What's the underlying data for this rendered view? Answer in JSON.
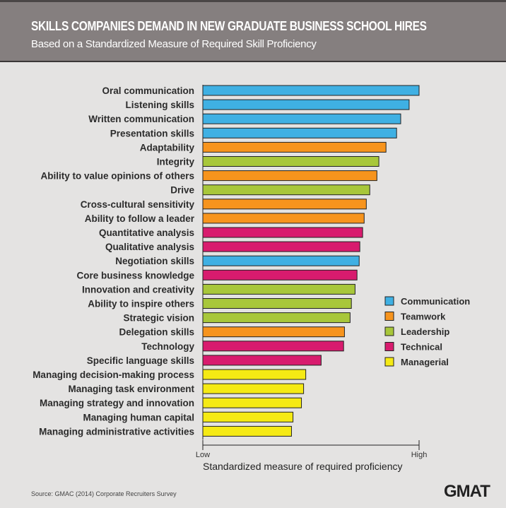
{
  "chart_data": {
    "type": "bar",
    "orientation": "horizontal",
    "title": "SKILLS COMPANIES DEMAND IN NEW GRADUATE BUSINESS SCHOOL HIRES",
    "subtitle": "Based on a Standardized Measure of Required Skill Proficiency",
    "xlabel": "Standardized measure of required proficiency",
    "x_tick_labels": [
      "Low",
      "High"
    ],
    "xlim": [
      0,
      1
    ],
    "grid": false,
    "legend_placement": "right",
    "legend": [
      {
        "name": "Communication",
        "color": "#3fb0e3"
      },
      {
        "name": "Teamwork",
        "color": "#f7941d"
      },
      {
        "name": "Leadership",
        "color": "#a8c73a"
      },
      {
        "name": "Technical",
        "color": "#d81b6e"
      },
      {
        "name": "Managerial",
        "color": "#f5ea14"
      }
    ],
    "bars": [
      {
        "label": "Oral communication",
        "value": 1.0,
        "group": "Communication"
      },
      {
        "label": "Listening skills",
        "value": 0.954,
        "group": "Communication"
      },
      {
        "label": "Written communication",
        "value": 0.915,
        "group": "Communication"
      },
      {
        "label": "Presentation skills",
        "value": 0.896,
        "group": "Communication"
      },
      {
        "label": "Adaptability",
        "value": 0.847,
        "group": "Teamwork"
      },
      {
        "label": "Integrity",
        "value": 0.814,
        "group": "Leadership"
      },
      {
        "label": "Ability to value opinions of others",
        "value": 0.805,
        "group": "Teamwork"
      },
      {
        "label": "Drive",
        "value": 0.772,
        "group": "Leadership"
      },
      {
        "label": "Cross-cultural sensitivity",
        "value": 0.756,
        "group": "Teamwork"
      },
      {
        "label": "Ability to follow a leader",
        "value": 0.746,
        "group": "Teamwork"
      },
      {
        "label": "Quantitative analysis",
        "value": 0.739,
        "group": "Technical"
      },
      {
        "label": "Qualitative analysis",
        "value": 0.726,
        "group": "Technical"
      },
      {
        "label": "Negotiation skills",
        "value": 0.723,
        "group": "Communication"
      },
      {
        "label": "Core business knowledge",
        "value": 0.713,
        "group": "Technical"
      },
      {
        "label": "Innovation and creativity",
        "value": 0.704,
        "group": "Leadership"
      },
      {
        "label": "Ability to inspire others",
        "value": 0.687,
        "group": "Leadership"
      },
      {
        "label": "Strategic vision",
        "value": 0.681,
        "group": "Leadership"
      },
      {
        "label": "Delegation skills",
        "value": 0.655,
        "group": "Teamwork"
      },
      {
        "label": "Technology",
        "value": 0.651,
        "group": "Technical"
      },
      {
        "label": "Specific language skills",
        "value": 0.547,
        "group": "Technical"
      },
      {
        "label": "Managing decision-making process",
        "value": 0.476,
        "group": "Managerial"
      },
      {
        "label": "Managing task environment",
        "value": 0.466,
        "group": "Managerial"
      },
      {
        "label": "Managing strategy and innovation",
        "value": 0.456,
        "group": "Managerial"
      },
      {
        "label": "Managing human capital",
        "value": 0.417,
        "group": "Managerial"
      },
      {
        "label": "Managing administrative activities",
        "value": 0.41,
        "group": "Managerial"
      }
    ]
  },
  "footer": {
    "source": "Source: GMAC (2014) Corporate Recruiters Survey",
    "logo_text": "GMAT"
  }
}
